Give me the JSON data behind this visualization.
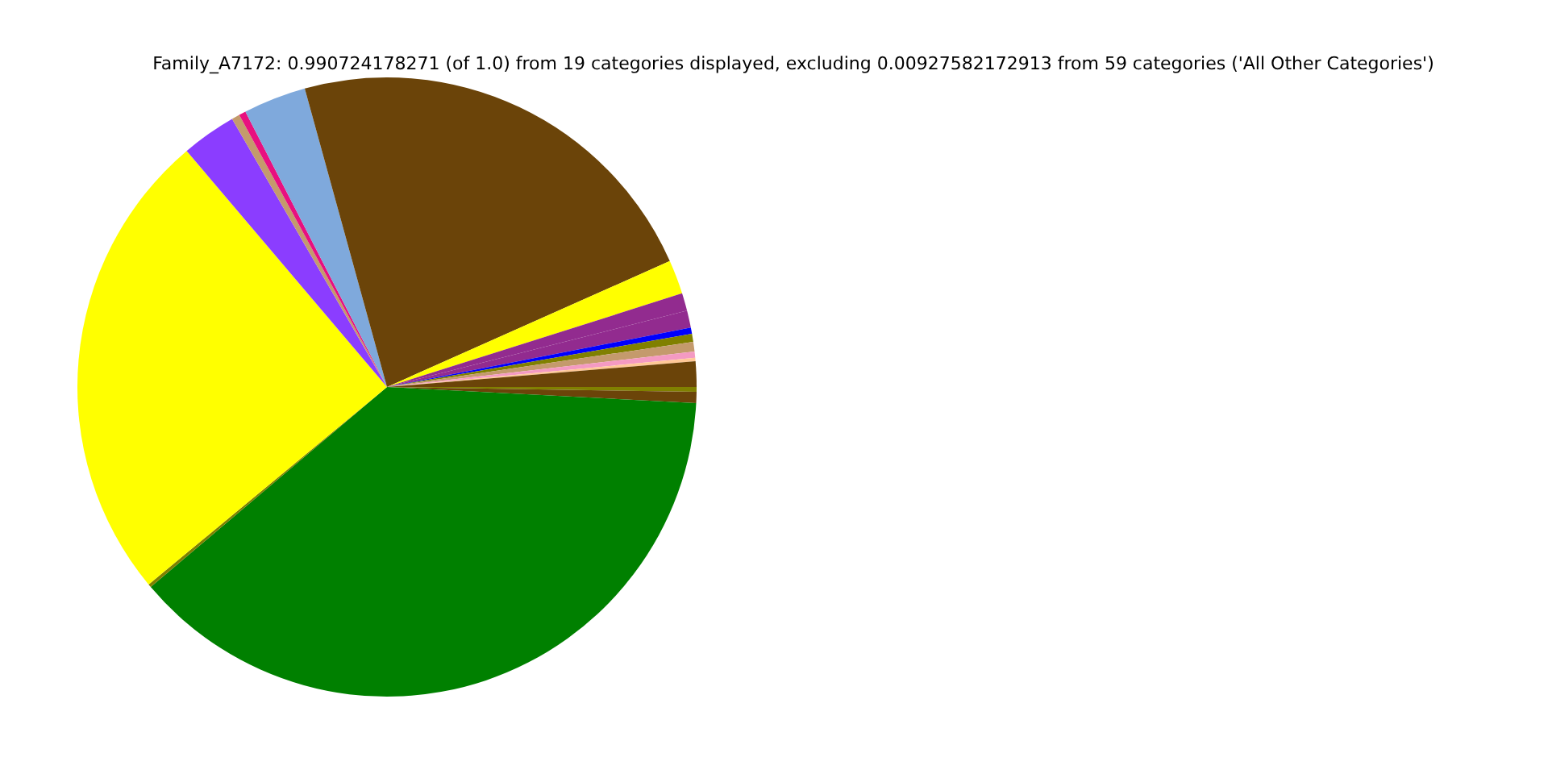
{
  "chart_data": {
    "type": "pie",
    "title": "Family_A7172: 0.990724178271 (of 1.0) from 19 categories displayed, excluding 0.00927582172913 from 59 categories ('All Other Categories')",
    "categories": [
      null,
      null,
      null,
      null,
      null,
      null,
      null,
      null,
      null,
      null,
      null,
      null,
      null,
      null,
      null,
      null,
      null,
      null,
      null
    ],
    "values": [
      0.25,
      0.58,
      37.99,
      0.17,
      24.81,
      2.86,
      0.42,
      0.36,
      3.28,
      22.61,
      1.78,
      0.92,
      0.89,
      0.33,
      0.42,
      0.5,
      0.33,
      0.17,
      1.33
    ],
    "colors": [
      "#808000",
      "#6b4409",
      "#008000",
      "#808000",
      "#ffff00",
      "#8b3dff",
      "#c49a6c",
      "#e8107f",
      "#7fa9dc",
      "#6b4409",
      "#ffff00",
      "#922b8f",
      "#922b8f",
      "#0000ff",
      "#808000",
      "#c49a6c",
      "#f49ac2",
      "#ffc896",
      "#6b4409"
    ],
    "legend": false
  }
}
